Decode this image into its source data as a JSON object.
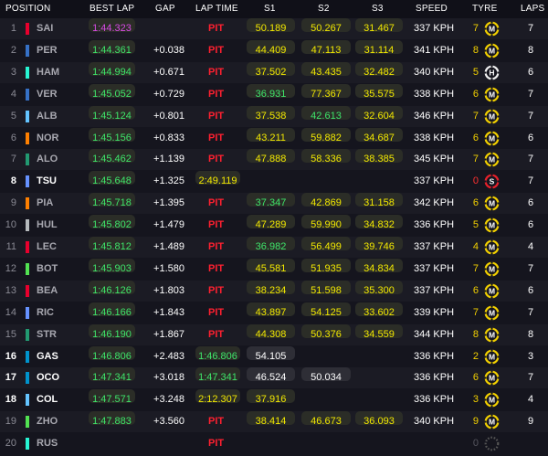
{
  "headers": {
    "position": "POSITION",
    "best_lap": "BEST LAP",
    "gap": "GAP",
    "lap_time": "LAP TIME",
    "s1": "S1",
    "s2": "S2",
    "s3": "S3",
    "speed": "SPEED",
    "tyre": "TYRE",
    "laps": "LAPS"
  },
  "colors": {
    "purple": "#d84be6",
    "green": "#3ee56a",
    "yellow": "#f2e800",
    "pit": "#ff2030"
  },
  "tyre_icons": {
    "M": "medium-tyre-icon",
    "H": "hard-tyre-icon",
    "S": "soft-tyre-icon"
  },
  "rows": [
    {
      "pos": "1",
      "driver": "SAI",
      "team_color": "#e8002d",
      "best": "1:44.323",
      "best_purple": true,
      "gap": "",
      "status": "PIT",
      "lap_time": "",
      "s1": "50.189",
      "s2": "50.267",
      "s3": "31.467",
      "s1c": "y",
      "s2c": "y",
      "s3c": "y",
      "speed": "337 KPH",
      "tyre_laps": "7",
      "tyre": "M",
      "laps": "7",
      "highlight": false
    },
    {
      "pos": "2",
      "driver": "PER",
      "team_color": "#3671c6",
      "best": "1:44.361",
      "gap": "+0.038",
      "status": "PIT",
      "lap_time": "",
      "s1": "44.409",
      "s2": "47.113",
      "s3": "31.114",
      "s1c": "y",
      "s2c": "y",
      "s3c": "y",
      "speed": "341 KPH",
      "tyre_laps": "8",
      "tyre": "M",
      "laps": "8",
      "highlight": false
    },
    {
      "pos": "3",
      "driver": "HAM",
      "team_color": "#27f4d2",
      "best": "1:44.994",
      "gap": "+0.671",
      "status": "PIT",
      "lap_time": "",
      "s1": "37.502",
      "s2": "43.435",
      "s3": "32.482",
      "s1c": "y",
      "s2c": "y",
      "s3c": "y",
      "speed": "340 KPH",
      "tyre_laps": "5",
      "tyre": "H",
      "laps": "6",
      "highlight": false
    },
    {
      "pos": "4",
      "driver": "VER",
      "team_color": "#3671c6",
      "best": "1:45.052",
      "gap": "+0.729",
      "status": "PIT",
      "lap_time": "",
      "s1": "36.931",
      "s2": "77.367",
      "s3": "35.575",
      "s1c": "g",
      "s2c": "y",
      "s3c": "y",
      "speed": "338 KPH",
      "tyre_laps": "6",
      "tyre": "M",
      "laps": "7",
      "highlight": false
    },
    {
      "pos": "5",
      "driver": "ALB",
      "team_color": "#64c4ff",
      "best": "1:45.124",
      "gap": "+0.801",
      "status": "PIT",
      "lap_time": "",
      "s1": "37.538",
      "s2": "42.613",
      "s3": "32.604",
      "s1c": "y",
      "s2c": "g",
      "s3c": "y",
      "speed": "346 KPH",
      "tyre_laps": "7",
      "tyre": "M",
      "laps": "7",
      "highlight": false
    },
    {
      "pos": "6",
      "driver": "NOR",
      "team_color": "#ff8000",
      "best": "1:45.156",
      "gap": "+0.833",
      "status": "PIT",
      "lap_time": "",
      "s1": "43.211",
      "s2": "59.882",
      "s3": "34.687",
      "s1c": "y",
      "s2c": "y",
      "s3c": "y",
      "speed": "338 KPH",
      "tyre_laps": "6",
      "tyre": "M",
      "laps": "6",
      "highlight": false
    },
    {
      "pos": "7",
      "driver": "ALO",
      "team_color": "#229971",
      "best": "1:45.462",
      "gap": "+1.139",
      "status": "PIT",
      "lap_time": "",
      "s1": "47.888",
      "s2": "58.336",
      "s3": "38.385",
      "s1c": "y",
      "s2c": "y",
      "s3c": "y",
      "speed": "345 KPH",
      "tyre_laps": "7",
      "tyre": "M",
      "laps": "7",
      "highlight": false
    },
    {
      "pos": "8",
      "driver": "TSU",
      "team_color": "#6692ff",
      "best": "1:45.648",
      "gap": "+1.325",
      "status": "",
      "lap_time": "2:49.119",
      "lap_time_green": false,
      "s1": "",
      "s2": "",
      "s3": "",
      "s1c": "",
      "s2c": "",
      "s3c": "",
      "speed": "337 KPH",
      "tyre_laps": "0",
      "tyre_laps_red": true,
      "tyre": "S",
      "laps": "7",
      "highlight": true
    },
    {
      "pos": "9",
      "driver": "PIA",
      "team_color": "#ff8000",
      "best": "1:45.718",
      "gap": "+1.395",
      "status": "PIT",
      "lap_time": "",
      "s1": "37.347",
      "s2": "42.869",
      "s3": "31.158",
      "s1c": "g",
      "s2c": "y",
      "s3c": "y",
      "speed": "342 KPH",
      "tyre_laps": "6",
      "tyre": "M",
      "laps": "6",
      "highlight": false
    },
    {
      "pos": "10",
      "driver": "HUL",
      "team_color": "#b6babd",
      "best": "1:45.802",
      "gap": "+1.479",
      "status": "PIT",
      "lap_time": "",
      "s1": "47.289",
      "s2": "59.990",
      "s3": "34.832",
      "s1c": "y",
      "s2c": "y",
      "s3c": "y",
      "speed": "336 KPH",
      "tyre_laps": "5",
      "tyre": "M",
      "laps": "6",
      "highlight": false
    },
    {
      "pos": "11",
      "driver": "LEC",
      "team_color": "#e8002d",
      "best": "1:45.812",
      "gap": "+1.489",
      "status": "PIT",
      "lap_time": "",
      "s1": "36.982",
      "s2": "56.499",
      "s3": "39.746",
      "s1c": "g",
      "s2c": "y",
      "s3c": "y",
      "speed": "337 KPH",
      "tyre_laps": "4",
      "tyre": "M",
      "laps": "4",
      "highlight": false
    },
    {
      "pos": "12",
      "driver": "BOT",
      "team_color": "#52e252",
      "best": "1:45.903",
      "gap": "+1.580",
      "status": "PIT",
      "lap_time": "",
      "s1": "45.581",
      "s2": "51.935",
      "s3": "34.834",
      "s1c": "y",
      "s2c": "y",
      "s3c": "y",
      "speed": "337 KPH",
      "tyre_laps": "7",
      "tyre": "M",
      "laps": "7",
      "highlight": false
    },
    {
      "pos": "13",
      "driver": "BEA",
      "team_color": "#e8002d",
      "best": "1:46.126",
      "gap": "+1.803",
      "status": "PIT",
      "lap_time": "",
      "s1": "38.234",
      "s2": "51.598",
      "s3": "35.300",
      "s1c": "y",
      "s2c": "y",
      "s3c": "y",
      "speed": "337 KPH",
      "tyre_laps": "6",
      "tyre": "M",
      "laps": "6",
      "highlight": false
    },
    {
      "pos": "14",
      "driver": "RIC",
      "team_color": "#6692ff",
      "best": "1:46.166",
      "gap": "+1.843",
      "status": "PIT",
      "lap_time": "",
      "s1": "43.897",
      "s2": "54.125",
      "s3": "33.602",
      "s1c": "y",
      "s2c": "y",
      "s3c": "y",
      "speed": "339 KPH",
      "tyre_laps": "7",
      "tyre": "M",
      "laps": "7",
      "highlight": false
    },
    {
      "pos": "15",
      "driver": "STR",
      "team_color": "#229971",
      "best": "1:46.190",
      "gap": "+1.867",
      "status": "PIT",
      "lap_time": "",
      "s1": "44.308",
      "s2": "50.376",
      "s3": "34.559",
      "s1c": "y",
      "s2c": "y",
      "s3c": "y",
      "speed": "344 KPH",
      "tyre_laps": "8",
      "tyre": "M",
      "laps": "8",
      "highlight": false
    },
    {
      "pos": "16",
      "driver": "GAS",
      "team_color": "#0093cc",
      "best": "1:46.806",
      "gap": "+2.483",
      "status": "",
      "lap_time": "1:46.806",
      "lap_time_green": true,
      "s1": "54.105",
      "s2": "",
      "s3": "",
      "s1c": "w",
      "s2c": "",
      "s3c": "",
      "speed": "336 KPH",
      "tyre_laps": "2",
      "tyre": "M",
      "laps": "3",
      "highlight": true
    },
    {
      "pos": "17",
      "driver": "OCO",
      "team_color": "#0093cc",
      "best": "1:47.341",
      "gap": "+3.018",
      "status": "",
      "lap_time": "1:47.341",
      "lap_time_green": true,
      "s1": "46.524",
      "s2": "50.034",
      "s3": "",
      "s1c": "w",
      "s2c": "w",
      "s3c": "",
      "speed": "336 KPH",
      "tyre_laps": "6",
      "tyre": "M",
      "laps": "7",
      "highlight": true
    },
    {
      "pos": "18",
      "driver": "COL",
      "team_color": "#64c4ff",
      "best": "1:47.571",
      "gap": "+3.248",
      "status": "",
      "lap_time": "2:12.307",
      "lap_time_green": false,
      "s1": "37.916",
      "s2": "",
      "s3": "",
      "s1c": "y",
      "s2c": "",
      "s3c": "",
      "speed": "336 KPH",
      "tyre_laps": "3",
      "tyre": "M",
      "laps": "4",
      "highlight": true
    },
    {
      "pos": "19",
      "driver": "ZHO",
      "team_color": "#52e252",
      "best": "1:47.883",
      "gap": "+3.560",
      "status": "PIT",
      "lap_time": "",
      "s1": "38.414",
      "s2": "46.673",
      "s3": "36.093",
      "s1c": "y",
      "s2c": "y",
      "s3c": "y",
      "speed": "340 KPH",
      "tyre_laps": "9",
      "tyre": "M",
      "laps": "9",
      "highlight": false
    },
    {
      "pos": "20",
      "driver": "RUS",
      "team_color": "#27f4d2",
      "best": "",
      "gap": "",
      "status": "PIT",
      "lap_time": "",
      "s1": "",
      "s2": "",
      "s3": "",
      "s1c": "",
      "s2c": "",
      "s3c": "",
      "speed": "",
      "tyre_laps": "0",
      "tyre_laps_dim": true,
      "tyre": "",
      "laps": "",
      "highlight": false
    }
  ]
}
